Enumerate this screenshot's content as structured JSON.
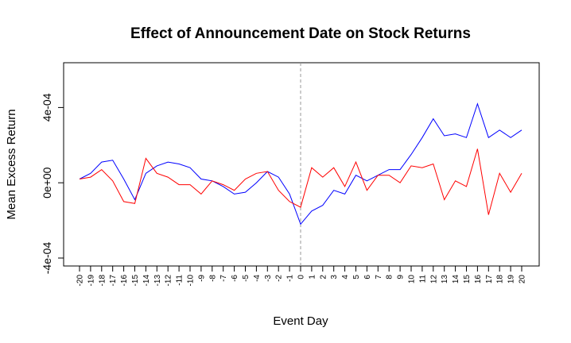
{
  "chart_data": {
    "type": "line",
    "title": "Effect of Announcement Date on Stock Returns",
    "xlabel": "Event Day",
    "ylabel": "Mean Excess Return",
    "x": [
      -20,
      -19,
      -18,
      -17,
      -16,
      -15,
      -14,
      -13,
      -12,
      -11,
      -10,
      -9,
      -8,
      -7,
      -6,
      -5,
      -4,
      -3,
      -2,
      -1,
      0,
      1,
      2,
      3,
      4,
      5,
      6,
      7,
      8,
      9,
      10,
      11,
      12,
      13,
      14,
      15,
      16,
      17,
      18,
      19,
      20
    ],
    "x_tick_labels": [
      "-20",
      "-19",
      "-18",
      "-17",
      "-16",
      "-15",
      "-14",
      "-13",
      "-12",
      "-11",
      "-10",
      "-9",
      "-8",
      "-7",
      "-6",
      "-5",
      "-4",
      "-3",
      "-2",
      "-1",
      "0",
      "1",
      "2",
      "3",
      "4",
      "5",
      "6",
      "7",
      "8",
      "9",
      "10",
      "11",
      "12",
      "13",
      "14",
      "15",
      "16",
      "17",
      "18",
      "19",
      "20"
    ],
    "xlim": [
      -20,
      20
    ],
    "ylim": [
      -0.0004,
      0.0006
    ],
    "y_ticks": [
      -0.0004,
      0,
      0.0004
    ],
    "y_tick_labels": [
      "-4e-04",
      "0e+00",
      "4e-04"
    ],
    "grid": false,
    "reference_line": {
      "x": 0,
      "style": "dashed",
      "color": "#999999"
    },
    "series": [
      {
        "color": "#0000ff",
        "values": [
          2e-05,
          5e-05,
          0.00011,
          0.00012,
          2e-05,
          -9e-05,
          5e-05,
          9e-05,
          0.00011,
          0.0001,
          8e-05,
          2e-05,
          1e-05,
          -2e-05,
          -6e-05,
          -5e-05,
          0.0,
          6e-05,
          3e-05,
          -6e-05,
          -0.00022,
          -0.00015,
          -0.00012,
          -4e-05,
          -6e-05,
          4e-05,
          1e-05,
          4e-05,
          7e-05,
          7e-05,
          0.00015,
          0.00024,
          0.00034,
          0.00025,
          0.00026,
          0.00024,
          0.00042,
          0.00024,
          0.00028,
          0.00024,
          0.00028
        ]
      },
      {
        "color": "#ff0000",
        "values": [
          2e-05,
          3e-05,
          7e-05,
          1e-05,
          -0.0001,
          -0.00011,
          0.00013,
          5e-05,
          3e-05,
          -1e-05,
          -1e-05,
          -6e-05,
          1e-05,
          -1e-05,
          -4e-05,
          2e-05,
          5e-05,
          6e-05,
          -4e-05,
          -0.0001,
          -0.00013,
          8e-05,
          3e-05,
          8e-05,
          -2e-05,
          0.00011,
          -4e-05,
          4e-05,
          4e-05,
          0.0,
          9e-05,
          8e-05,
          0.0001,
          -9e-05,
          1e-05,
          -2e-05,
          0.00018,
          -0.00017,
          5e-05,
          -5e-05,
          5e-05
        ]
      }
    ]
  }
}
